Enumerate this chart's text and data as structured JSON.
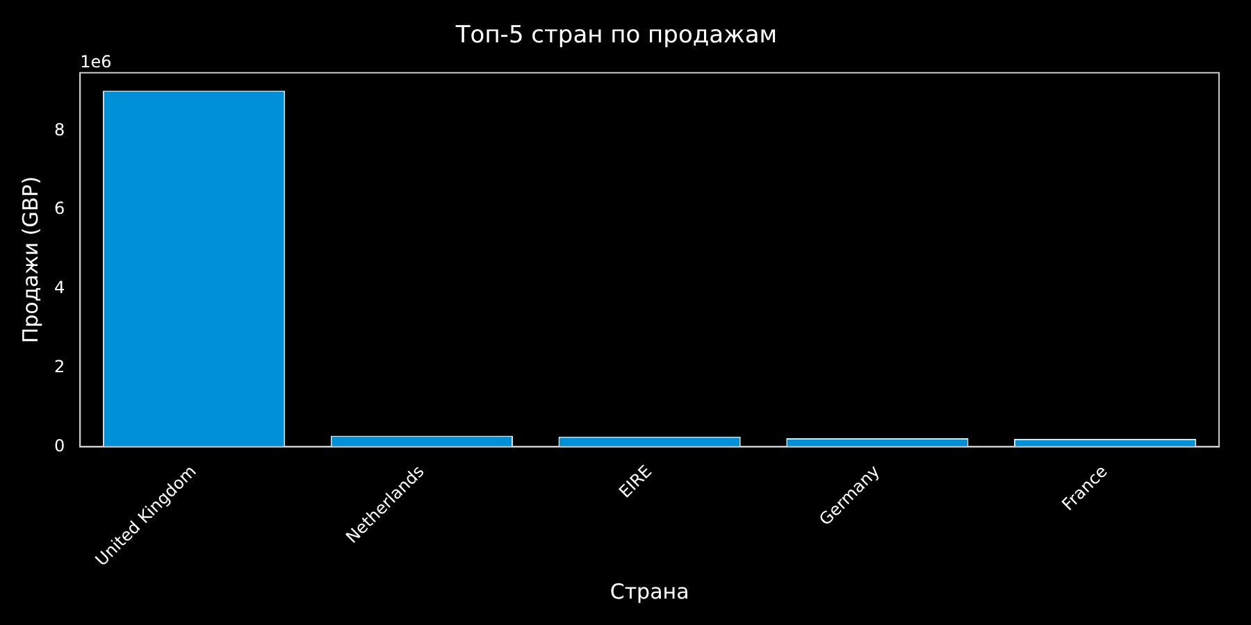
{
  "chart_data": {
    "type": "bar",
    "title": "Топ-5 стран по продажам",
    "xlabel": "Страна",
    "ylabel": "Продажи (GBP)",
    "categories": [
      "United Kingdom",
      "Netherlands",
      "EIRE",
      "Germany",
      "France"
    ],
    "values": [
      9.02,
      0.28,
      0.26,
      0.22,
      0.2
    ],
    "color": "#0090d8",
    "ylim": [
      0,
      9.47
    ],
    "yticks": [
      0,
      2,
      4,
      6,
      8
    ],
    "annotations": [
      "1e6"
    ],
    "grid": false,
    "legend": false
  }
}
